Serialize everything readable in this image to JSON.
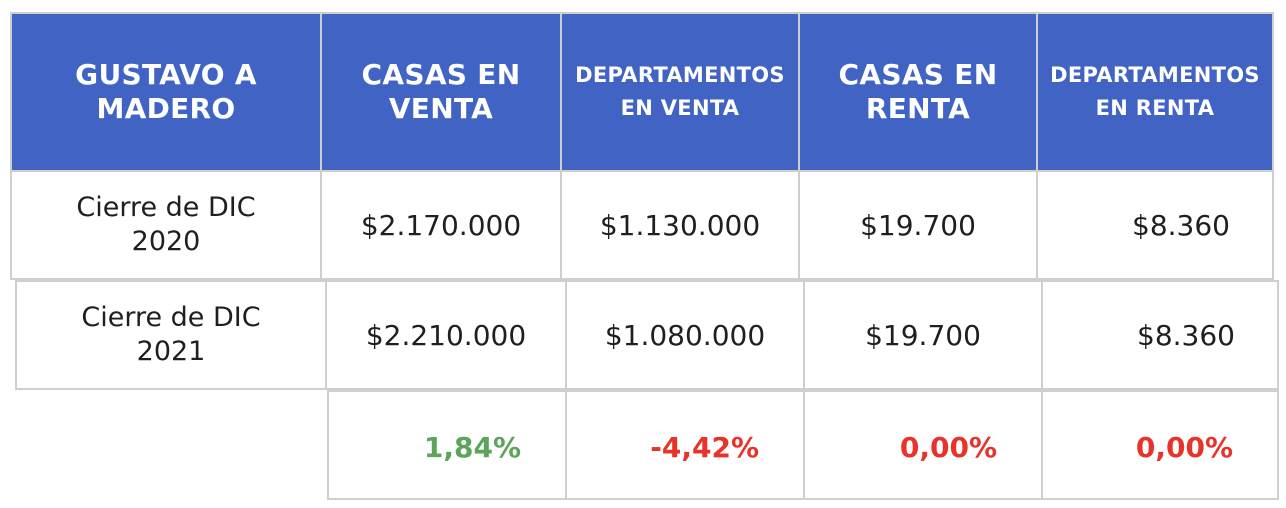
{
  "header": {
    "col0": "GUSTAVO A MADERO",
    "col1": "CASAS EN VENTA",
    "col2": "DEPARTAMENTOS EN VENTA",
    "col3": "CASAS EN RENTA",
    "col4": "DEPARTAMENTOS EN RENTA"
  },
  "rows": [
    {
      "label": "Cierre de DIC 2020",
      "values": [
        "$2.170.000",
        "$1.130.000",
        "$19.700",
        "$8.360"
      ]
    },
    {
      "label": "Cierre de DIC 2021",
      "values": [
        "$2.210.000",
        "$1.080.000",
        "$19.700",
        "$8.360"
      ]
    }
  ],
  "changes": [
    "1,84%",
    "-4,42%",
    "0,00%",
    "0,00%"
  ],
  "colors": {
    "header_bg": "#4063c4",
    "positive": "#5aa55a",
    "negative": "#e8332a",
    "border": "#cfcfcf"
  }
}
